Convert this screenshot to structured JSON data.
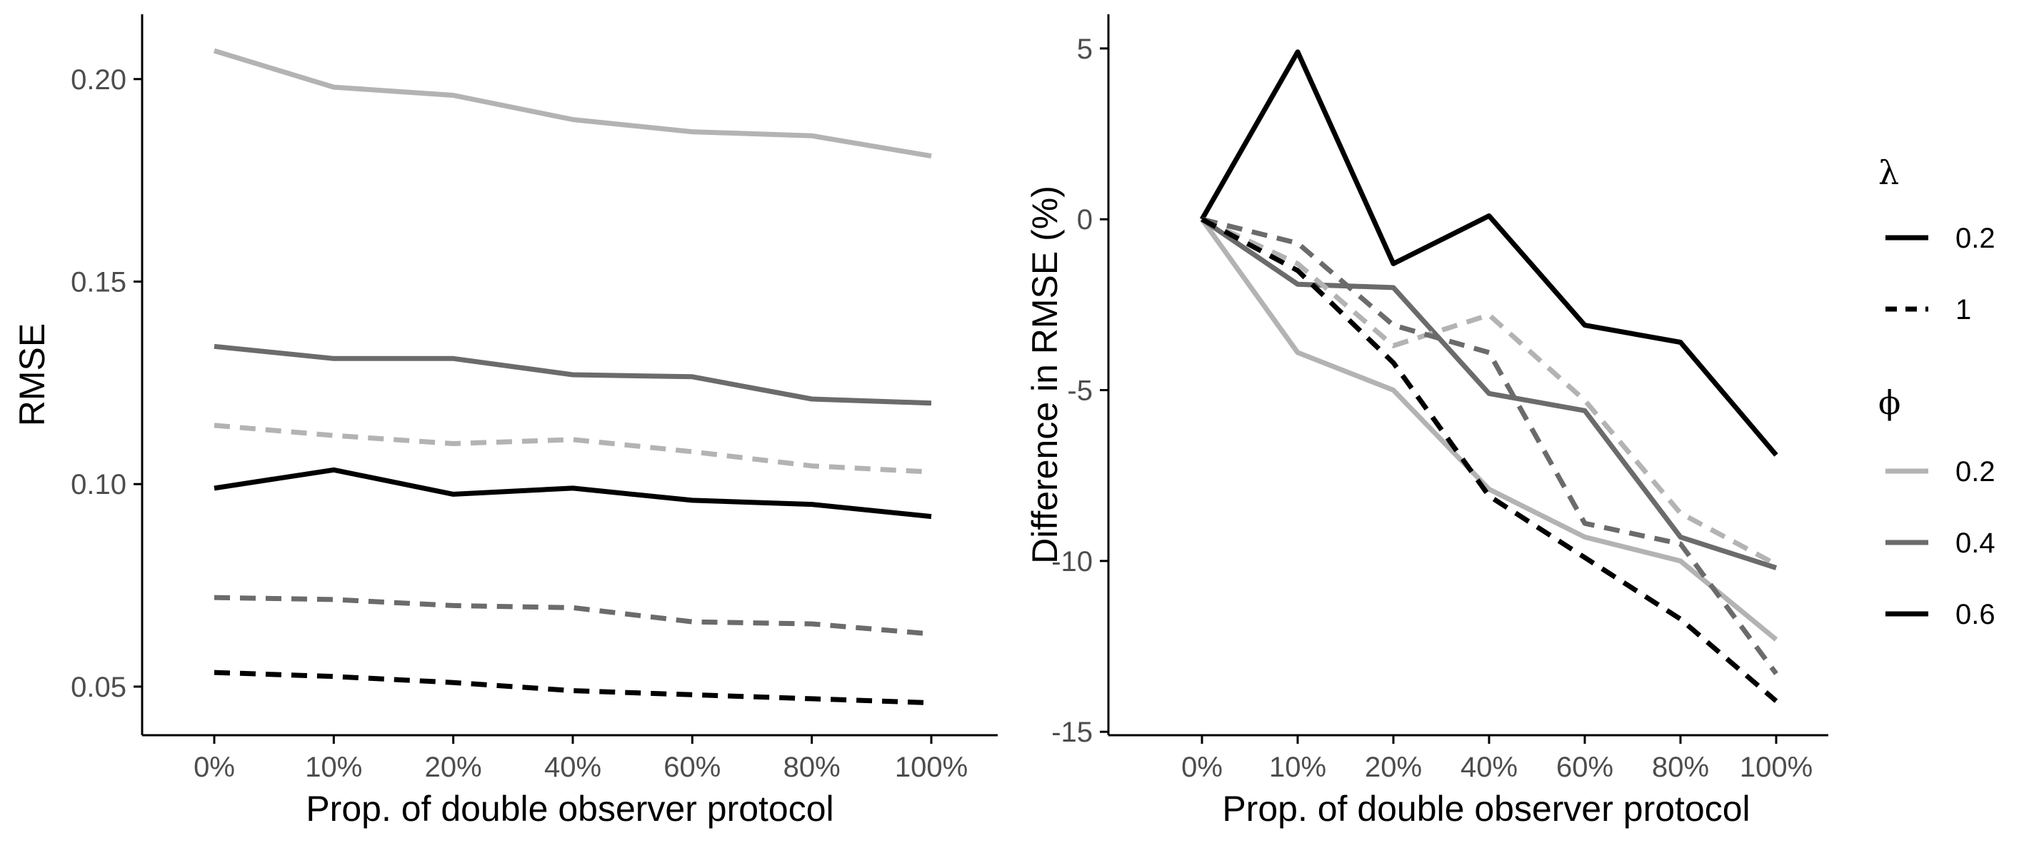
{
  "chart_data": [
    {
      "type": "line",
      "title": "",
      "xlabel": "Prop. of double observer protocol",
      "ylabel": "RMSE",
      "categories": [
        "0%",
        "10%",
        "20%",
        "40%",
        "60%",
        "80%",
        "100%"
      ],
      "yticks": [
        "0.05",
        "0.10",
        "0.15",
        "0.20"
      ],
      "yticks_values": [
        0.05,
        0.1,
        0.15,
        0.2
      ],
      "ylim": [
        0.038,
        0.216
      ],
      "grid": false,
      "series": [
        {
          "lambda": "0.2",
          "phi": "0.2",
          "color": "#b3b3b3",
          "dash": "solid",
          "values": [
            0.207,
            0.198,
            0.196,
            0.19,
            0.187,
            0.186,
            0.181
          ]
        },
        {
          "lambda": "0.2",
          "phi": "0.4",
          "color": "#6b6b6b",
          "dash": "solid",
          "values": [
            0.134,
            0.131,
            0.131,
            0.127,
            0.1265,
            0.121,
            0.12
          ]
        },
        {
          "lambda": "0.2",
          "phi": "0.6",
          "color": "#000000",
          "dash": "solid",
          "values": [
            0.099,
            0.1035,
            0.0975,
            0.099,
            0.096,
            0.095,
            0.092
          ]
        },
        {
          "lambda": "1",
          "phi": "0.2",
          "color": "#b3b3b3",
          "dash": "dashed",
          "values": [
            0.1145,
            0.112,
            0.11,
            0.111,
            0.108,
            0.1045,
            0.103
          ]
        },
        {
          "lambda": "1",
          "phi": "0.4",
          "color": "#6b6b6b",
          "dash": "dashed",
          "values": [
            0.072,
            0.0715,
            0.07,
            0.0695,
            0.066,
            0.0655,
            0.063
          ]
        },
        {
          "lambda": "1",
          "phi": "0.6",
          "color": "#000000",
          "dash": "dashed",
          "values": [
            0.0535,
            0.0525,
            0.051,
            0.049,
            0.048,
            0.047,
            0.046
          ]
        }
      ]
    },
    {
      "type": "line",
      "title": "",
      "xlabel": "Prop. of double observer protocol",
      "ylabel": "Difference in RMSE (%)",
      "categories": [
        "0%",
        "10%",
        "20%",
        "40%",
        "60%",
        "80%",
        "100%"
      ],
      "yticks": [
        "5",
        "0",
        "-5",
        "-10",
        "-15"
      ],
      "yticks_values": [
        5,
        0,
        -5,
        -10,
        -15
      ],
      "ylim": [
        -15.1,
        6.0
      ],
      "grid": false,
      "series": [
        {
          "lambda": "0.2",
          "phi": "0.2",
          "color": "#b3b3b3",
          "dash": "solid",
          "values": [
            0,
            -3.9,
            -5.0,
            -7.9,
            -9.3,
            -10.0,
            -12.3
          ]
        },
        {
          "lambda": "0.2",
          "phi": "0.4",
          "color": "#6b6b6b",
          "dash": "solid",
          "values": [
            0,
            -1.9,
            -2.0,
            -5.1,
            -5.6,
            -9.3,
            -10.2
          ]
        },
        {
          "lambda": "0.2",
          "phi": "0.6",
          "color": "#000000",
          "dash": "solid",
          "values": [
            0,
            4.9,
            -1.3,
            0.1,
            -3.1,
            -3.6,
            -6.9
          ]
        },
        {
          "lambda": "1",
          "phi": "0.2",
          "color": "#b3b3b3",
          "dash": "dashed",
          "values": [
            0,
            -1.3,
            -3.7,
            -2.8,
            -5.3,
            -8.6,
            -10.1
          ]
        },
        {
          "lambda": "1",
          "phi": "0.4",
          "color": "#6b6b6b",
          "dash": "dashed",
          "values": [
            0,
            -0.7,
            -3.1,
            -3.9,
            -8.9,
            -9.5,
            -13.3
          ]
        },
        {
          "lambda": "1",
          "phi": "0.6",
          "color": "#000000",
          "dash": "dashed",
          "values": [
            0,
            -1.5,
            -4.2,
            -8.1,
            -9.9,
            -11.7,
            -14.1
          ]
        }
      ]
    }
  ],
  "legend": {
    "placement": "right",
    "lambda_title": "λ",
    "lambda_items": [
      {
        "label": "0.2",
        "dash": "solid",
        "color": "#000000"
      },
      {
        "label": "1",
        "dash": "dashed",
        "color": "#000000"
      }
    ],
    "phi_title": "ϕ",
    "phi_items": [
      {
        "label": "0.2",
        "dash": "solid",
        "color": "#b3b3b3"
      },
      {
        "label": "0.4",
        "dash": "solid",
        "color": "#6b6b6b"
      },
      {
        "label": "0.6",
        "dash": "solid",
        "color": "#000000"
      }
    ]
  }
}
